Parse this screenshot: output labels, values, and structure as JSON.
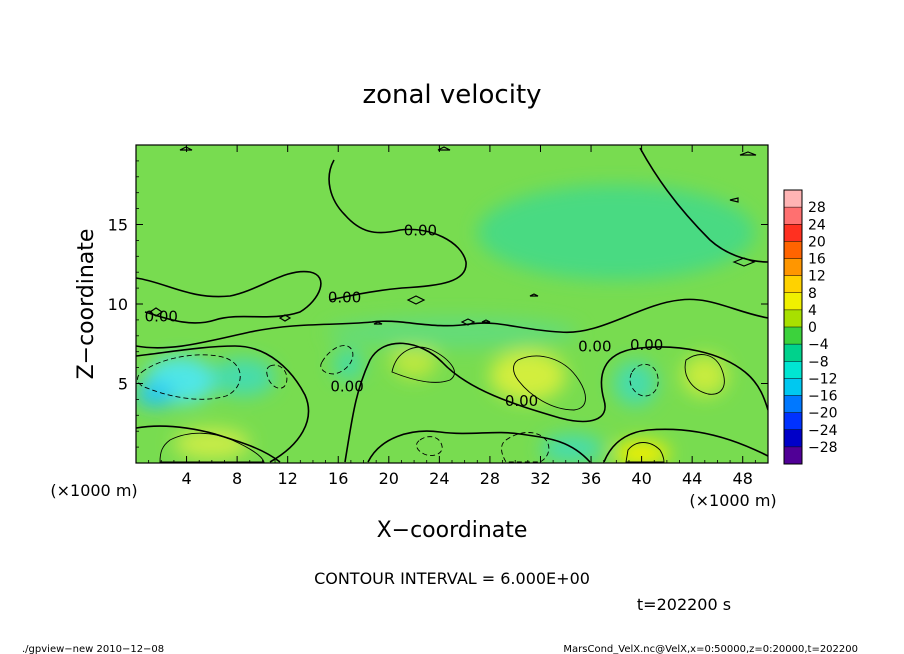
{
  "chart_data": {
    "type": "heatmap",
    "title": "zonal velocity",
    "xlabel": "X−coordinate",
    "ylabel": "Z−coordinate",
    "x_unit_label": "(×1000 m)",
    "y_unit_label": "(×1000 m)",
    "xlim": [
      0,
      50
    ],
    "ylim": [
      0,
      20
    ],
    "x_ticks": [
      4,
      8,
      12,
      16,
      20,
      24,
      28,
      32,
      36,
      40,
      44,
      48
    ],
    "y_ticks": [
      5,
      10,
      15
    ],
    "contour_interval_label": "CONTOUR INTERVAL = 6.000E+00",
    "contour_labels": [
      {
        "text": "0.00",
        "x": 22.5,
        "z": 14.3
      },
      {
        "text": "0.00",
        "x": 16.5,
        "z": 10.1
      },
      {
        "text": "0.00",
        "x": 2.0,
        "z": 8.9
      },
      {
        "text": "0.00",
        "x": 36.3,
        "z": 7.0
      },
      {
        "text": "0.00",
        "x": 40.4,
        "z": 7.1
      },
      {
        "text": "0.00",
        "x": 16.7,
        "z": 4.5
      },
      {
        "text": "0.00",
        "x": 30.5,
        "z": 3.6
      }
    ],
    "colorbar": {
      "levels": [
        28,
        24,
        20,
        16,
        12,
        8,
        4,
        0,
        -4,
        -8,
        -12,
        -16,
        -20,
        -24,
        -28
      ],
      "labels": [
        "28",
        "24",
        "20",
        "16",
        "12",
        "8",
        "4",
        "0",
        "−4",
        "−8",
        "−12",
        "−16",
        "−20",
        "−24",
        "−28"
      ],
      "colors": [
        "#ff7070",
        "#ff3020",
        "#ff6400",
        "#ff9600",
        "#ffd200",
        "#f0f000",
        "#a8e000",
        "#3cd23c",
        "#00d28c",
        "#00e6d2",
        "#00c8f0",
        "#0078ff",
        "#0032ff",
        "#0000c8",
        "#500096"
      ]
    },
    "field_blobs": [
      {
        "x": 3.5,
        "z": 5.2,
        "rx": 2.8,
        "rz": 1.5,
        "color": "#50e6e6"
      },
      {
        "x": 1.5,
        "z": 4.3,
        "rx": 1.5,
        "rz": 0.8,
        "color": "#28c8f0"
      },
      {
        "x": 16.8,
        "z": 6.2,
        "rx": 1.2,
        "rz": 1.0,
        "color": "#46dca0"
      },
      {
        "x": 8.5,
        "z": 5.4,
        "rx": 2.5,
        "rz": 1.2,
        "color": "#46dcaa"
      },
      {
        "x": 31.0,
        "z": 5.5,
        "rx": 3.0,
        "rz": 1.6,
        "color": "#d2ee3c"
      },
      {
        "x": 22.0,
        "z": 6.5,
        "rx": 1.8,
        "rz": 1.2,
        "color": "#bce83c"
      },
      {
        "x": 45.0,
        "z": 5.5,
        "rx": 1.8,
        "rz": 1.3,
        "color": "#c8ec3c"
      },
      {
        "x": 39.5,
        "z": 5.0,
        "rx": 1.7,
        "rz": 1.4,
        "color": "#46dcaa"
      },
      {
        "x": 6.0,
        "z": 1.2,
        "rx": 3.0,
        "rz": 1.0,
        "color": "#c8ec46"
      },
      {
        "x": 34.5,
        "z": 0.9,
        "rx": 2.5,
        "rz": 0.9,
        "color": "#46dcaa"
      },
      {
        "x": 40.0,
        "z": 0.6,
        "rx": 2.2,
        "rz": 0.8,
        "color": "#f0f000"
      },
      {
        "x": 38.0,
        "z": 14.5,
        "rx": 11.0,
        "rz": 3.0,
        "color": "#4ada82"
      },
      {
        "x": 25.0,
        "z": 8.2,
        "rx": 10.0,
        "rz": 1.0,
        "color": "#64dc78"
      }
    ],
    "background_color": "#78dc50"
  },
  "annotations": {
    "time_label": "t=202200 s",
    "footer_left": "./gpview−new  2010−12−08",
    "footer_right": "MarsCond_VelX.nc@VelX,x=0:50000,z=0:20000,t=202200"
  }
}
